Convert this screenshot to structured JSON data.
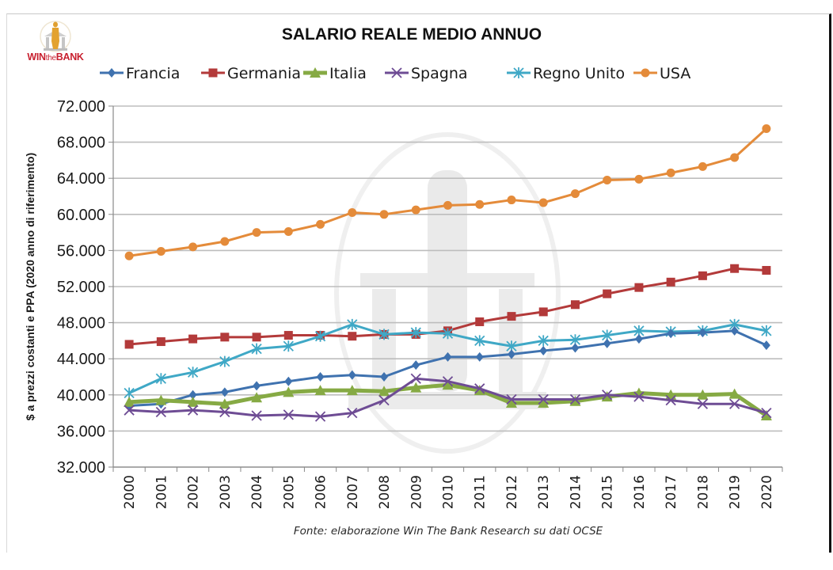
{
  "logo": {
    "text_win": "WIN",
    "text_the": "the",
    "text_bank": "BANK"
  },
  "colors": {
    "Francia": "#3f72af",
    "Germania": "#b33a3a",
    "Italia": "#86aa44",
    "Spagna": "#6e4c94",
    "Regno Unito": "#3fa8c6",
    "USA": "#e48b3a"
  },
  "chart_data": {
    "type": "line",
    "title": "SALARIO REALE MEDIO ANNUO",
    "xlabel": "",
    "ylabel": "$ a prezzi costanti e PPA (2020 anno di riferimento)",
    "source": "Fonte: elaborazione Win The Bank Research su dati OCSE",
    "legend_position": "top",
    "grid": true,
    "ylim": [
      32000,
      72000
    ],
    "y_ticks": [
      32000,
      36000,
      40000,
      44000,
      48000,
      52000,
      56000,
      60000,
      64000,
      68000,
      72000
    ],
    "y_tick_labels": [
      "32.000",
      "36.000",
      "40.000",
      "44.000",
      "48.000",
      "52.000",
      "56.000",
      "60.000",
      "64.000",
      "68.000",
      "72.000"
    ],
    "categories": [
      "2000",
      "2001",
      "2002",
      "2003",
      "2004",
      "2005",
      "2006",
      "2007",
      "2008",
      "2009",
      "2010",
      "2011",
      "2012",
      "2013",
      "2014",
      "2015",
      "2016",
      "2017",
      "2018",
      "2019",
      "2020"
    ],
    "series": [
      {
        "name": "Francia",
        "marker": "diamond",
        "values": [
          38800,
          39000,
          40000,
          40300,
          41000,
          41500,
          42000,
          42200,
          42000,
          43300,
          44200,
          44200,
          44500,
          44900,
          45200,
          45700,
          46200,
          46800,
          46900,
          47100,
          45500
        ]
      },
      {
        "name": "Germania",
        "marker": "square",
        "values": [
          45600,
          45900,
          46200,
          46400,
          46400,
          46600,
          46600,
          46500,
          46700,
          46700,
          47100,
          48100,
          48700,
          49200,
          50000,
          51200,
          51900,
          52500,
          53200,
          54000,
          53800
        ]
      },
      {
        "name": "Italia",
        "marker": "triangle",
        "values": [
          39200,
          39400,
          39200,
          39000,
          39700,
          40300,
          40500,
          40500,
          40400,
          40800,
          41100,
          40500,
          39100,
          39100,
          39300,
          39800,
          40200,
          40000,
          40000,
          40100,
          37700
        ]
      },
      {
        "name": "Spagna",
        "marker": "x",
        "values": [
          38300,
          38100,
          38300,
          38100,
          37700,
          37800,
          37600,
          38000,
          39400,
          41800,
          41500,
          40700,
          39500,
          39500,
          39500,
          40000,
          39800,
          39400,
          39000,
          39000,
          38000
        ]
      },
      {
        "name": "Regno Unito",
        "marker": "star",
        "values": [
          40200,
          41800,
          42500,
          43700,
          45100,
          45400,
          46500,
          47800,
          46700,
          46900,
          46800,
          46000,
          45400,
          46000,
          46100,
          46600,
          47100,
          47000,
          47100,
          47800,
          47100
        ]
      },
      {
        "name": "USA",
        "marker": "circle",
        "values": [
          55400,
          55900,
          56400,
          57000,
          58000,
          58100,
          58900,
          60200,
          60000,
          60500,
          61000,
          61100,
          61600,
          61300,
          62300,
          63800,
          63900,
          64600,
          65300,
          66300,
          69500
        ]
      }
    ]
  }
}
